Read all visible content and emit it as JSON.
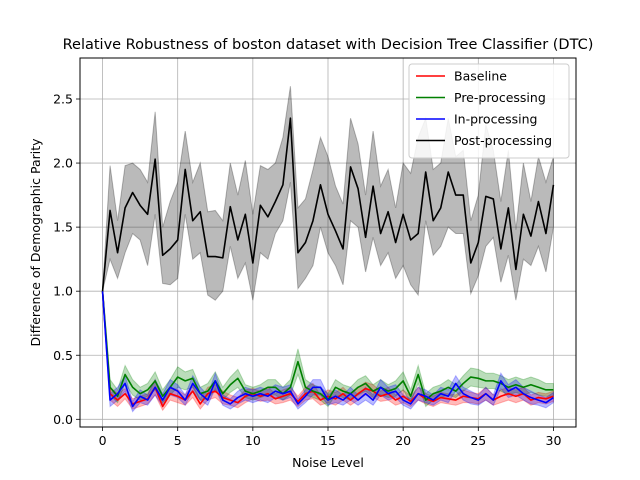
{
  "chart_data": {
    "type": "line",
    "title": "Relative Robustness of boston dataset with Decision Tree Classifier (DTC)",
    "xlabel": "Noise Level",
    "ylabel": "Difference of Demographic Parity",
    "xlim": [
      -1.5,
      31.5
    ],
    "ylim": [
      -0.06,
      2.82
    ],
    "xticks": [
      0,
      5,
      10,
      15,
      20,
      25,
      30
    ],
    "xtick_labels": [
      "0",
      "5",
      "10",
      "15",
      "20",
      "25",
      "30"
    ],
    "yticks": [
      0.0,
      0.5,
      1.0,
      1.5,
      2.0,
      2.5
    ],
    "ytick_labels": [
      "0.0",
      "0.5",
      "1.0",
      "1.5",
      "2.0",
      "2.5"
    ],
    "grid": true,
    "legend_position": "top-right",
    "x": [
      0,
      0.5,
      1,
      1.5,
      2,
      2.5,
      3,
      3.5,
      4,
      4.5,
      5,
      5.5,
      6,
      6.5,
      7,
      7.5,
      8,
      8.5,
      9,
      9.5,
      10,
      10.5,
      11,
      11.5,
      12,
      12.5,
      13,
      13.5,
      14,
      14.5,
      15,
      15.5,
      16,
      16.5,
      17,
      17.5,
      18,
      18.5,
      19,
      19.5,
      20,
      20.5,
      21,
      21.5,
      22,
      22.5,
      23,
      23.5,
      24,
      24.5,
      25,
      25.5,
      26,
      26.5,
      27,
      27.5,
      28,
      28.5,
      29,
      29.5,
      30
    ],
    "series": [
      {
        "name": "Baseline",
        "color": "#ff0000",
        "values": [
          1.0,
          0.2,
          0.15,
          0.2,
          0.12,
          0.14,
          0.16,
          0.25,
          0.1,
          0.2,
          0.18,
          0.15,
          0.22,
          0.12,
          0.2,
          0.22,
          0.17,
          0.15,
          0.13,
          0.18,
          0.2,
          0.18,
          0.2,
          0.16,
          0.18,
          0.2,
          0.14,
          0.2,
          0.22,
          0.15,
          0.18,
          0.16,
          0.2,
          0.15,
          0.2,
          0.24,
          0.22,
          0.18,
          0.2,
          0.15,
          0.18,
          0.14,
          0.2,
          0.16,
          0.14,
          0.17,
          0.16,
          0.15,
          0.18,
          0.17,
          0.16,
          0.2,
          0.15,
          0.18,
          0.2,
          0.18,
          0.2,
          0.15,
          0.17,
          0.16,
          0.18
        ],
        "band": [
          0.03,
          0.05,
          0.05,
          0.04,
          0.04,
          0.04,
          0.04,
          0.06,
          0.03,
          0.05,
          0.05,
          0.04,
          0.05,
          0.04,
          0.05,
          0.05,
          0.05,
          0.04,
          0.04,
          0.05,
          0.04,
          0.04,
          0.05,
          0.04,
          0.05,
          0.05,
          0.04,
          0.05,
          0.06,
          0.04,
          0.05,
          0.05,
          0.05,
          0.04,
          0.05,
          0.05,
          0.05,
          0.04,
          0.05,
          0.04,
          0.05,
          0.04,
          0.05,
          0.04,
          0.04,
          0.04,
          0.04,
          0.04,
          0.05,
          0.04,
          0.04,
          0.05,
          0.04,
          0.05,
          0.05,
          0.05,
          0.05,
          0.04,
          0.04,
          0.04,
          0.04
        ]
      },
      {
        "name": "Pre-processing",
        "color": "#008000",
        "values": [
          1.0,
          0.25,
          0.18,
          0.35,
          0.25,
          0.2,
          0.23,
          0.3,
          0.18,
          0.25,
          0.33,
          0.3,
          0.32,
          0.2,
          0.22,
          0.3,
          0.2,
          0.27,
          0.32,
          0.22,
          0.2,
          0.22,
          0.25,
          0.25,
          0.2,
          0.25,
          0.45,
          0.25,
          0.22,
          0.2,
          0.15,
          0.25,
          0.22,
          0.2,
          0.25,
          0.28,
          0.22,
          0.25,
          0.22,
          0.24,
          0.3,
          0.18,
          0.35,
          0.15,
          0.2,
          0.22,
          0.25,
          0.22,
          0.28,
          0.33,
          0.32,
          0.3,
          0.3,
          0.28,
          0.25,
          0.27,
          0.25,
          0.27,
          0.25,
          0.23,
          0.23
        ],
        "band": [
          0.04,
          0.06,
          0.05,
          0.07,
          0.06,
          0.05,
          0.05,
          0.07,
          0.05,
          0.06,
          0.08,
          0.07,
          0.07,
          0.05,
          0.06,
          0.07,
          0.05,
          0.06,
          0.07,
          0.05,
          0.05,
          0.05,
          0.06,
          0.06,
          0.05,
          0.06,
          0.1,
          0.06,
          0.05,
          0.05,
          0.05,
          0.06,
          0.05,
          0.05,
          0.06,
          0.06,
          0.05,
          0.06,
          0.05,
          0.06,
          0.07,
          0.05,
          0.07,
          0.05,
          0.05,
          0.05,
          0.06,
          0.05,
          0.06,
          0.07,
          0.07,
          0.06,
          0.06,
          0.06,
          0.06,
          0.06,
          0.06,
          0.06,
          0.06,
          0.05,
          0.05
        ]
      },
      {
        "name": "In-processing",
        "color": "#0000ff",
        "values": [
          1.0,
          0.15,
          0.2,
          0.28,
          0.1,
          0.18,
          0.15,
          0.25,
          0.15,
          0.25,
          0.22,
          0.15,
          0.28,
          0.2,
          0.15,
          0.3,
          0.15,
          0.12,
          0.17,
          0.2,
          0.18,
          0.2,
          0.18,
          0.22,
          0.2,
          0.22,
          0.12,
          0.18,
          0.25,
          0.25,
          0.15,
          0.18,
          0.15,
          0.2,
          0.15,
          0.2,
          0.15,
          0.25,
          0.2,
          0.22,
          0.15,
          0.12,
          0.2,
          0.18,
          0.15,
          0.2,
          0.18,
          0.28,
          0.2,
          0.17,
          0.15,
          0.2,
          0.15,
          0.3,
          0.22,
          0.25,
          0.2,
          0.17,
          0.15,
          0.13,
          0.17
        ],
        "band": [
          0.03,
          0.05,
          0.05,
          0.06,
          0.04,
          0.05,
          0.04,
          0.06,
          0.05,
          0.06,
          0.05,
          0.04,
          0.06,
          0.05,
          0.04,
          0.06,
          0.04,
          0.04,
          0.05,
          0.05,
          0.05,
          0.05,
          0.05,
          0.05,
          0.05,
          0.05,
          0.04,
          0.05,
          0.06,
          0.06,
          0.04,
          0.05,
          0.04,
          0.05,
          0.04,
          0.05,
          0.04,
          0.06,
          0.05,
          0.05,
          0.04,
          0.04,
          0.05,
          0.05,
          0.04,
          0.05,
          0.05,
          0.06,
          0.05,
          0.05,
          0.04,
          0.05,
          0.04,
          0.06,
          0.05,
          0.06,
          0.05,
          0.05,
          0.04,
          0.04,
          0.04
        ]
      },
      {
        "name": "Post-processing",
        "color": "#000000",
        "values": [
          1.0,
          1.63,
          1.3,
          1.65,
          1.77,
          1.67,
          1.6,
          2.03,
          1.28,
          1.33,
          1.4,
          1.95,
          1.55,
          1.62,
          1.27,
          1.27,
          1.26,
          1.66,
          1.4,
          1.6,
          1.22,
          1.67,
          1.58,
          1.7,
          1.83,
          2.35,
          1.3,
          1.38,
          1.55,
          1.83,
          1.6,
          1.47,
          1.33,
          1.97,
          1.8,
          1.42,
          1.82,
          1.45,
          1.62,
          1.38,
          1.6,
          1.4,
          1.45,
          1.93,
          1.55,
          1.65,
          1.93,
          1.75,
          1.75,
          1.22,
          1.38,
          1.74,
          1.72,
          1.33,
          1.65,
          1.17,
          1.6,
          1.43,
          1.7,
          1.45,
          1.83
        ],
        "lower": [
          1.0,
          1.25,
          1.1,
          1.3,
          1.45,
          1.4,
          1.2,
          1.6,
          1.06,
          1.05,
          1.1,
          1.6,
          1.25,
          1.3,
          0.97,
          0.93,
          1.0,
          1.35,
          1.1,
          1.22,
          0.93,
          1.3,
          1.25,
          1.45,
          1.55,
          1.85,
          1.02,
          1.1,
          1.2,
          1.5,
          1.3,
          1.2,
          1.05,
          1.55,
          1.5,
          1.15,
          1.42,
          1.2,
          1.3,
          1.1,
          1.2,
          1.05,
          0.97,
          1.55,
          1.28,
          1.35,
          1.5,
          1.45,
          1.45,
          0.98,
          1.12,
          1.35,
          1.42,
          1.07,
          1.28,
          0.93,
          1.25,
          1.2,
          1.35,
          1.15,
          1.5
        ],
        "upper": [
          1.0,
          1.98,
          1.55,
          1.98,
          2.0,
          1.95,
          1.85,
          2.4,
          1.5,
          1.7,
          1.85,
          2.25,
          1.85,
          2.0,
          1.62,
          1.63,
          1.55,
          2.0,
          1.75,
          2.02,
          1.6,
          1.98,
          1.95,
          2.0,
          2.2,
          2.6,
          1.65,
          1.72,
          1.95,
          2.2,
          2.05,
          1.82,
          1.68,
          2.35,
          2.15,
          1.75,
          2.25,
          1.82,
          1.95,
          1.65,
          2.0,
          1.92,
          2.2,
          2.35,
          1.95,
          2.0,
          2.35,
          2.05,
          2.1,
          1.55,
          1.75,
          2.3,
          2.1,
          1.7,
          2.1,
          1.48,
          2.0,
          1.7,
          2.05,
          1.85,
          2.05
        ]
      }
    ]
  }
}
